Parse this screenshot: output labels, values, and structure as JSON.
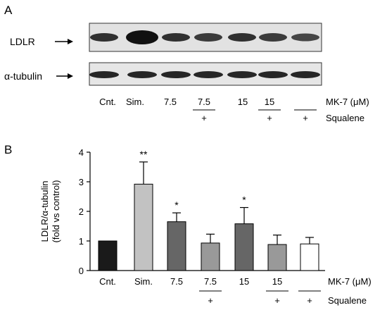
{
  "panel_a": {
    "label": "A",
    "blots": [
      {
        "label": "LDLR",
        "band_count": 7
      },
      {
        "label": "α-tubulin",
        "band_count": 7
      }
    ],
    "lane_labels": [
      "Cnt.",
      "Sim.",
      "7.5",
      "7.5",
      "15",
      "15",
      ""
    ],
    "squalene_marks": [
      "",
      "",
      "",
      "+",
      "",
      "+",
      "+"
    ],
    "dose_label": "MK-7 (μM)",
    "squalene_label": "Squalene"
  },
  "panel_b": {
    "label": "B",
    "dose_label": "MK-7 (μM)",
    "squalene_label": "Squalene"
  },
  "chart_data": {
    "type": "bar",
    "title": "",
    "categories": [
      "Cnt.",
      "Sim.",
      "7.5",
      "7.5",
      "15",
      "15",
      ""
    ],
    "squalene": [
      "",
      "",
      "",
      "+",
      "",
      "+",
      "+"
    ],
    "values": [
      1.0,
      2.92,
      1.65,
      0.93,
      1.58,
      0.88,
      0.9
    ],
    "errors": [
      0.0,
      0.75,
      0.3,
      0.3,
      0.55,
      0.32,
      0.22
    ],
    "significance": [
      "",
      "**",
      "*",
      "",
      "*",
      "",
      ""
    ],
    "bar_colors": [
      "#1a1a1a",
      "#c2c2c2",
      "#666666",
      "#999999",
      "#666666",
      "#999999",
      "#ffffff"
    ],
    "ylabel_line1": "LDLR/α-tubulin",
    "ylabel_line2": "(fold vs control)",
    "xlabel": "MK-7 (μM)",
    "ylim": [
      0,
      4
    ],
    "yticks": [
      0,
      1,
      2,
      3,
      4
    ],
    "grid": false
  }
}
